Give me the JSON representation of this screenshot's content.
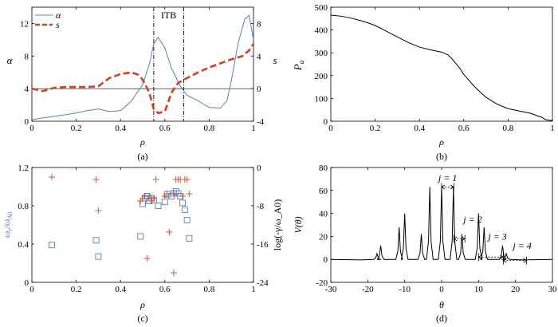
{
  "chart_data": [
    {
      "panel_label": "(a)",
      "type": "line",
      "xlabel": "ρ",
      "ylabel_left": "α",
      "ylabel_right": "s",
      "xlim": [
        0,
        1
      ],
      "ylim_left": [
        0,
        14
      ],
      "ylim_right": [
        -4,
        10
      ],
      "xticks": [
        "0",
        "0.2",
        "0.4",
        "0.6",
        "0.8",
        "1"
      ],
      "yticks_left": [
        "0",
        "4",
        "8",
        "12"
      ],
      "yticks_right": [
        "-4",
        "0",
        "4",
        "8"
      ],
      "annotation": "ITB",
      "itb_bounds": [
        0.55,
        0.685
      ],
      "legend": "top-left",
      "series": [
        {
          "name": "α",
          "axis": "left",
          "color": "#5b7fbf",
          "style": "solid",
          "x": [
            0,
            0.05,
            0.1,
            0.15,
            0.2,
            0.25,
            0.3,
            0.35,
            0.4,
            0.45,
            0.5,
            0.53,
            0.55,
            0.57,
            0.6,
            0.63,
            0.67,
            0.7,
            0.75,
            0.8,
            0.85,
            0.88,
            0.9,
            0.93,
            0.96,
            0.98,
            1.0
          ],
          "y": [
            0.2,
            0.4,
            0.6,
            0.8,
            1.0,
            1.3,
            1.5,
            1.2,
            1.3,
            2.5,
            4.5,
            7.0,
            9.5,
            10.3,
            9.0,
            6.5,
            4.3,
            3.2,
            2.5,
            1.7,
            1.6,
            2.5,
            5.0,
            9.5,
            12.5,
            13.0,
            10.0
          ]
        },
        {
          "name": "s",
          "axis": "right",
          "color": "#cc4422",
          "style": "dashed",
          "x": [
            0,
            0.05,
            0.1,
            0.15,
            0.2,
            0.25,
            0.3,
            0.35,
            0.4,
            0.45,
            0.48,
            0.5,
            0.53,
            0.55,
            0.57,
            0.6,
            0.63,
            0.66,
            0.7,
            0.75,
            0.8,
            0.85,
            0.9,
            0.95,
            0.98,
            1.0
          ],
          "y": [
            0.0,
            -0.3,
            0.1,
            0.2,
            0.2,
            0.2,
            0.3,
            1.3,
            1.8,
            2.0,
            1.7,
            1.1,
            -0.5,
            -2.5,
            -3.0,
            -2.8,
            -0.5,
            0.7,
            1.3,
            2.0,
            2.6,
            3.1,
            3.6,
            4.0,
            4.7,
            5.5
          ]
        }
      ]
    },
    {
      "panel_label": "(b)",
      "type": "line",
      "xlabel": "ρ",
      "ylabel": "P_a",
      "xlim": [
        0,
        1
      ],
      "ylim": [
        0,
        500
      ],
      "xticks": [
        "0",
        "0.2",
        "0.4",
        "0.6",
        "0.8",
        "1"
      ],
      "yticks": [
        "0",
        "100",
        "200",
        "300",
        "400",
        "500"
      ],
      "series": [
        {
          "color": "#000000",
          "x": [
            0,
            0.05,
            0.1,
            0.15,
            0.2,
            0.25,
            0.3,
            0.35,
            0.4,
            0.45,
            0.5,
            0.53,
            0.55,
            0.58,
            0.6,
            0.65,
            0.7,
            0.75,
            0.8,
            0.85,
            0.9,
            0.93,
            0.95,
            0.97,
            1.0
          ],
          "y": [
            465,
            460,
            450,
            437,
            420,
            395,
            370,
            345,
            325,
            313,
            303,
            290,
            270,
            235,
            205,
            150,
            105,
            75,
            55,
            45,
            35,
            25,
            18,
            7,
            2
          ]
        }
      ]
    },
    {
      "panel_label": "(c)",
      "type": "scatter",
      "xlabel": "ρ",
      "ylabel_left": "ω_r/ω_A0",
      "ylabel_right": "log(-γ/ω_A0)",
      "xlim": [
        0,
        1
      ],
      "ylim_left": [
        0,
        1.2
      ],
      "ylim_right": [
        -24,
        0
      ],
      "xticks": [
        "0",
        "0.2",
        "0.4",
        "0.6",
        "0.8",
        "1"
      ],
      "yticks_left": [
        "0",
        "0.4",
        "0.8",
        "1.2"
      ],
      "yticks_right": [
        "-24",
        "-16",
        "-8",
        "0"
      ],
      "left_color": "#5b7fbf",
      "right_color": "#cc5a3a",
      "series": [
        {
          "name": "ω_r/ω_A0",
          "axis": "left",
          "marker": "square",
          "x": [
            0.09,
            0.29,
            0.3,
            0.49,
            0.5,
            0.51,
            0.52,
            0.53,
            0.54,
            0.55,
            0.57,
            0.6,
            0.61,
            0.63,
            0.64,
            0.65,
            0.66,
            0.67,
            0.68,
            0.69,
            0.7,
            0.71
          ],
          "y": [
            0.39,
            0.44,
            0.27,
            0.48,
            0.82,
            0.88,
            0.9,
            0.85,
            0.88,
            0.86,
            0.8,
            0.84,
            0.92,
            0.9,
            0.93,
            0.95,
            0.93,
            0.9,
            0.83,
            0.76,
            0.65,
            0.46
          ]
        },
        {
          "name": "log(-γ/ω_A0)",
          "axis": "right",
          "marker": "plus",
          "x": [
            0.09,
            0.29,
            0.3,
            0.49,
            0.5,
            0.51,
            0.52,
            0.53,
            0.54,
            0.55,
            0.56,
            0.6,
            0.61,
            0.62,
            0.64,
            0.64,
            0.65,
            0.66,
            0.67,
            0.68,
            0.69,
            0.7,
            0.71
          ],
          "y": [
            -2.0,
            -2.5,
            -9.0,
            -7.0,
            -6.5,
            -6.0,
            -19.0,
            -6.0,
            -7.0,
            -6.5,
            -2.5,
            -6.0,
            -5.5,
            -13.5,
            -22.0,
            -5.5,
            -2.5,
            -2.5,
            -2.5,
            -6.0,
            -2.5,
            -2.5,
            -5.5
          ]
        }
      ]
    },
    {
      "panel_label": "(d)",
      "type": "line",
      "xlabel": "θ",
      "ylabel": "V(θ)",
      "xlim": [
        -30,
        30
      ],
      "ylim": [
        -20,
        80
      ],
      "xticks": [
        "-30",
        "-20",
        "-10",
        "0",
        "10",
        "20",
        "30"
      ],
      "yticks": [
        "-20",
        "0",
        "20",
        "40",
        "60",
        "80"
      ],
      "annotations": [
        "j = 1",
        "j = 2",
        "j = 3",
        "j = 4"
      ],
      "annotation_spans": [
        [
          0,
          3.3
        ],
        [
          3.3,
          6.3
        ],
        [
          10,
          16.7
        ],
        [
          16.7,
          23
        ]
      ],
      "series": [
        {
          "color": "#000000",
          "peaks_x": [
            -17.5,
            -16.5,
            -11.5,
            -10,
            -5.5,
            -3.2,
            0,
            3.2,
            5.5,
            10,
            11.5,
            16.5,
            17.5
          ],
          "peaks_y": [
            5,
            12,
            28,
            40,
            22,
            63,
            63,
            63,
            22,
            40,
            28,
            12,
            5
          ],
          "baseline": 0
        }
      ]
    }
  ]
}
